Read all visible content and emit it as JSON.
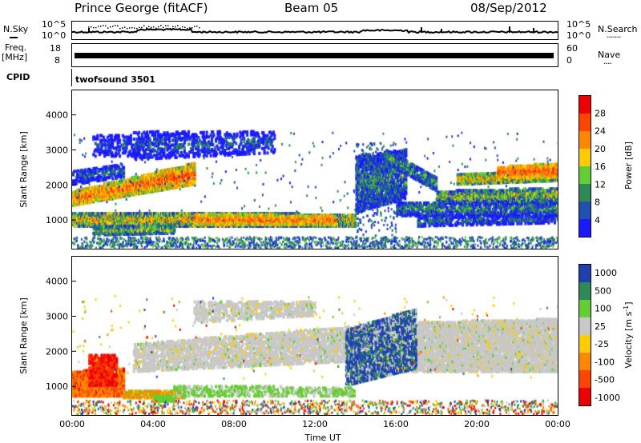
{
  "header": {
    "title": "Prince George (fitACF)",
    "beam": "Beam 05",
    "date": "08/Sep/2012"
  },
  "strip_nsky": {
    "left_label": "N.Sky",
    "right_label": "N.Search",
    "right_dots": "·······",
    "tick_top": "10^5",
    "tick_bottom": "10^0"
  },
  "strip_freq": {
    "left_label_1": "Freq.",
    "left_label_2": "[MHz]",
    "tick_18": "18",
    "tick_8": "8",
    "right_label": "Nave",
    "right_dots": "····",
    "tick_60": "60",
    "tick_0": "0"
  },
  "strip_cpid": {
    "left_label": "CPID",
    "program": "twofsound 3501"
  },
  "colors": {
    "power": [
      "#1a1aff",
      "#2050b0",
      "#2e8b57",
      "#66cc33",
      "#ffcc00",
      "#ff8800",
      "#ff4400",
      "#ee0000"
    ],
    "velocity": [
      "#2040b0",
      "#2e8b57",
      "#66cc33",
      "#c8c8c8",
      "#ffcc00",
      "#ff8800",
      "#ff4400",
      "#ee0000"
    ]
  },
  "chart_data": [
    {
      "type": "heatmap",
      "quantity": "power",
      "ylabel": "Slant Range [km]",
      "ylim": [
        180,
        4700
      ],
      "y_ticks": [
        "1000",
        "2000",
        "3000",
        "4000"
      ],
      "xlim": [
        0,
        24
      ],
      "colorbar_label": "Power [dB]",
      "colorbar_ticks": [
        "4",
        "8",
        "12",
        "16",
        "20",
        "24",
        "28"
      ],
      "colorbar_range": [
        0,
        32
      ]
    },
    {
      "type": "heatmap",
      "quantity": "velocity",
      "ylabel": "Slant Range [km]",
      "ylim": [
        180,
        4700
      ],
      "y_ticks": [
        "1000",
        "2000",
        "3000",
        "4000"
      ],
      "xlim": [
        0,
        24
      ],
      "xlabel": "Time UT",
      "x_ticks": [
        "00:00",
        "04:00",
        "08:00",
        "12:00",
        "16:00",
        "20:00",
        "00:00"
      ],
      "colorbar_label": "Velocity [m s^-1]",
      "colorbar_ticks": [
        "1000",
        "500",
        "100",
        "25",
        "-25",
        "-100",
        "-500",
        "-1000"
      ]
    }
  ]
}
